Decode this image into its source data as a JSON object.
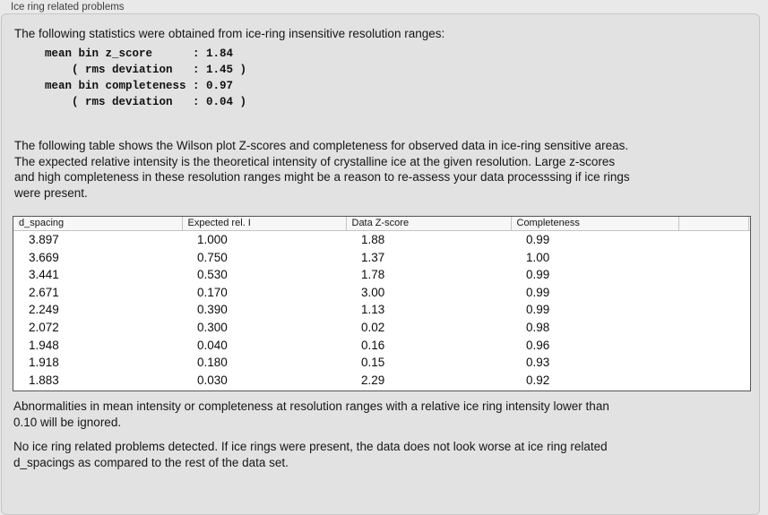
{
  "window": {
    "title": "Ice ring related problems"
  },
  "panel": {
    "intro": "The following statistics were obtained from ice-ring insensitive resolution ranges:",
    "stats_block": "mean bin z_score      : 1.84\n    ( rms deviation   : 1.45 )\nmean bin completeness : 0.97\n    ( rms deviation   : 0.04 )",
    "description": "The following table shows the Wilson plot Z-scores and completeness for observed data in ice-ring sensitive areas.\nThe expected relative intensity is the theoretical intensity of crystalline ice at the given resolution. Large z-scores\nand high completeness in these resolution ranges might be a reason to re-assess your data processsing if ice rings\nwere present.",
    "note": "Abnormalities in mean intensity or completeness at resolution ranges with a relative ice ring intensity lower than\n0.10 will be ignored.",
    "conclusion": "No ice ring related problems detected. If ice rings were present, the data does not look worse at ice ring related\nd_spacings as compared to the rest of the data set."
  },
  "table": {
    "columns": [
      "d_spacing",
      "Expected rel. I",
      "Data Z-score",
      "Completeness",
      ""
    ],
    "rows": [
      [
        "3.897",
        "1.000",
        "1.88",
        "0.99"
      ],
      [
        "3.669",
        "0.750",
        "1.37",
        "1.00"
      ],
      [
        "3.441",
        "0.530",
        "1.78",
        "0.99"
      ],
      [
        "2.671",
        "0.170",
        "3.00",
        "0.99"
      ],
      [
        "2.249",
        "0.390",
        "1.13",
        "0.99"
      ],
      [
        "2.072",
        "0.300",
        "0.02",
        "0.98"
      ],
      [
        "1.948",
        "0.040",
        "0.16",
        "0.96"
      ],
      [
        "1.918",
        "0.180",
        "0.15",
        "0.93"
      ],
      [
        "1.883",
        "0.030",
        "2.29",
        "0.92"
      ]
    ]
  },
  "colors": {
    "page_bg": "#e9e9e9",
    "panel_bg": "#e2e2e2",
    "panel_border": "#c6c6c6",
    "table_bg": "#ffffff",
    "table_border": "#565656",
    "header_bg": "#f7f7f7",
    "header_divider": "#c4c4c4",
    "text": "#161616",
    "title_text": "#3e3e3e"
  }
}
